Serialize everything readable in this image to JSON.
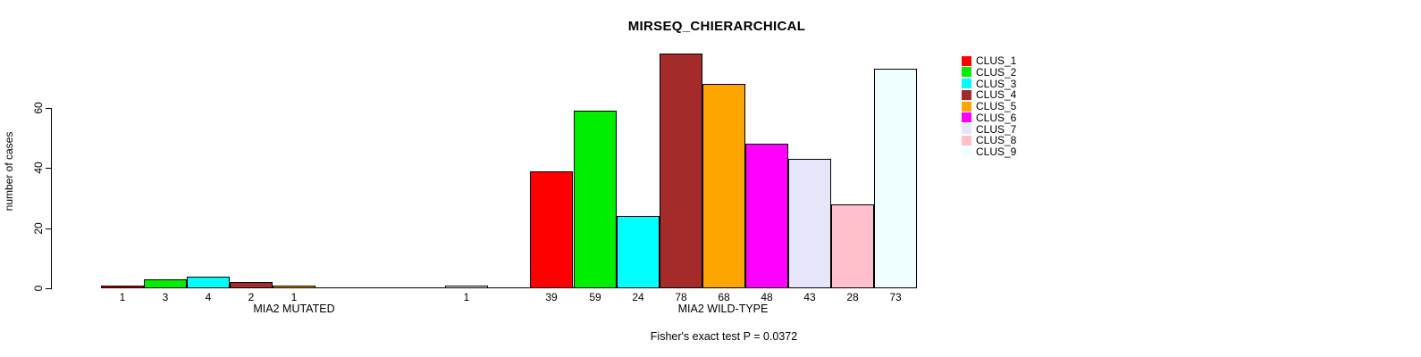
{
  "chart_data": {
    "type": "bar",
    "title": "MIRSEQ_CHIERARCHICAL",
    "ylabel": "number of cases",
    "footnote": "Fisher's exact test P = 0.0372",
    "yticks": [
      0,
      20,
      40,
      60
    ],
    "ylim": [
      0,
      78
    ],
    "grid": false,
    "legend_position": "right",
    "clusters": [
      {
        "name": "CLUS_1",
        "color": "#FF0000"
      },
      {
        "name": "CLUS_2",
        "color": "#00EE00"
      },
      {
        "name": "CLUS_3",
        "color": "#00FFFF"
      },
      {
        "name": "CLUS_4",
        "color": "#A52A2A"
      },
      {
        "name": "CLUS_5",
        "color": "#FFA500"
      },
      {
        "name": "CLUS_6",
        "color": "#FF00FF"
      },
      {
        "name": "CLUS_7",
        "color": "#E6E6FA"
      },
      {
        "name": "CLUS_8",
        "color": "#FFC0CB"
      },
      {
        "name": "CLUS_9",
        "color": "#F0FFFF"
      }
    ],
    "groups": [
      {
        "label": "MIA2 MUTATED",
        "values": [
          1,
          3,
          4,
          2,
          1,
          0,
          0,
          0,
          1
        ]
      },
      {
        "label": "MIA2 WILD-TYPE",
        "values": [
          39,
          59,
          24,
          78,
          68,
          48,
          43,
          28,
          73
        ]
      }
    ]
  }
}
